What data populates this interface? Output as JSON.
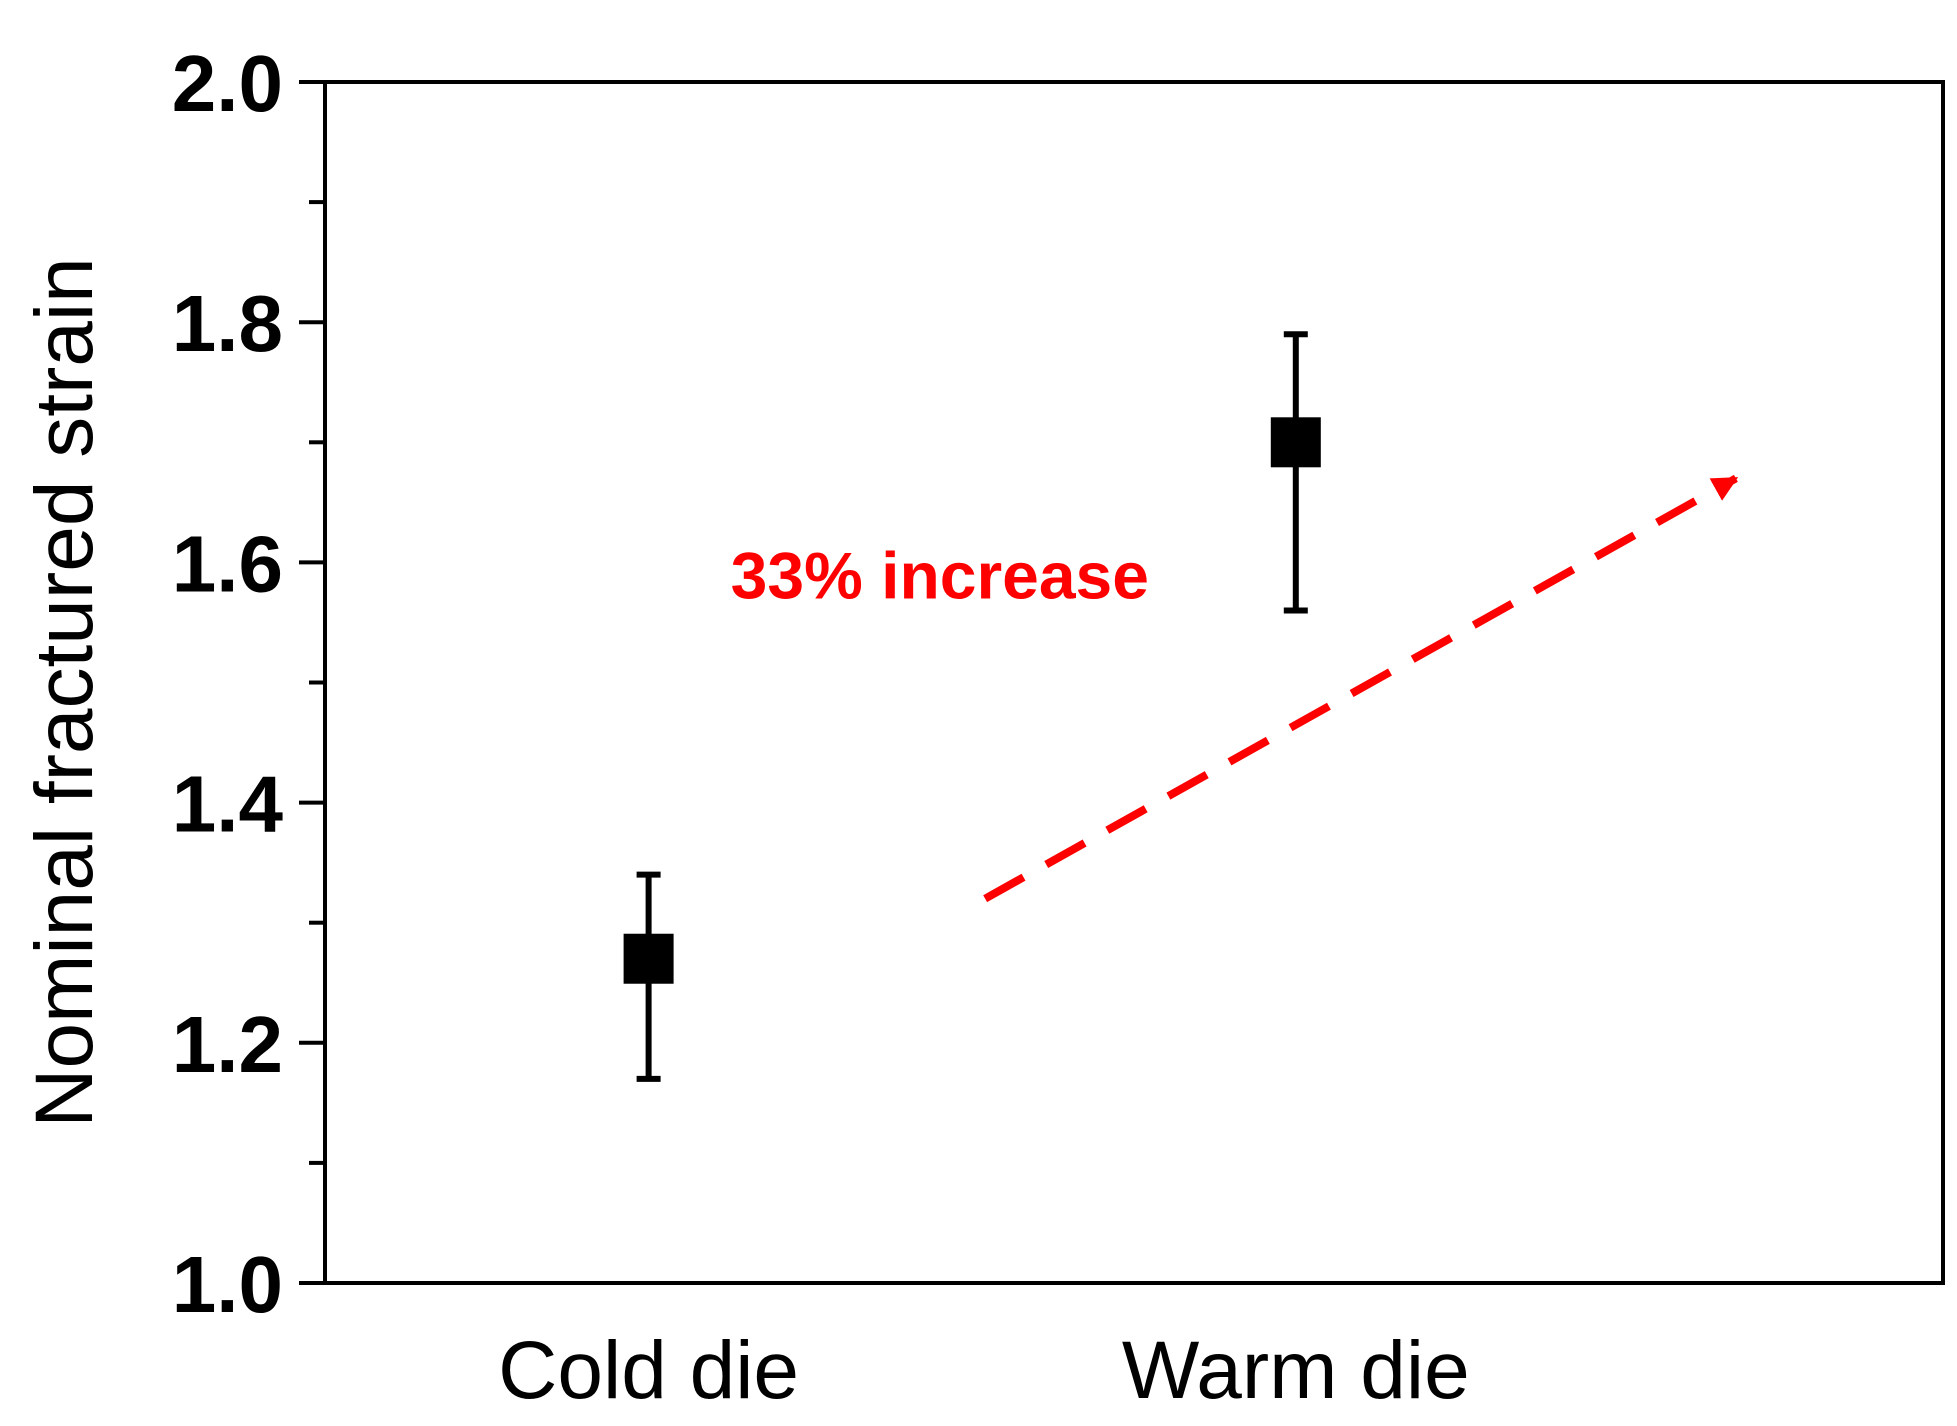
{
  "chart_data": {
    "type": "scatter",
    "title": "",
    "xlabel": "",
    "ylabel": "Nominal fractured strain",
    "categories": [
      "Cold die",
      "Warm die"
    ],
    "series": [
      {
        "name": "Nominal fractured strain",
        "values": [
          1.27,
          1.7
        ],
        "error_low": [
          1.17,
          1.56
        ],
        "error_high": [
          1.34,
          1.79
        ],
        "marker": "square",
        "color": "#000000"
      }
    ],
    "ylim": [
      1.0,
      2.0
    ],
    "y_ticks": [
      1.0,
      1.2,
      1.4,
      1.6,
      1.8,
      2.0
    ],
    "y_tick_labels": [
      "1.0",
      "1.2",
      "1.4",
      "1.6",
      "1.8",
      "2.0"
    ],
    "y_minor_step": 0.1,
    "grid": false,
    "annotations": [
      {
        "text": "33% increase",
        "color": "#ff0000",
        "arrow_from": [
          0.52,
          1.32
        ],
        "arrow_to": [
          1.68,
          1.67
        ],
        "arrow_style": "dashed"
      }
    ]
  }
}
